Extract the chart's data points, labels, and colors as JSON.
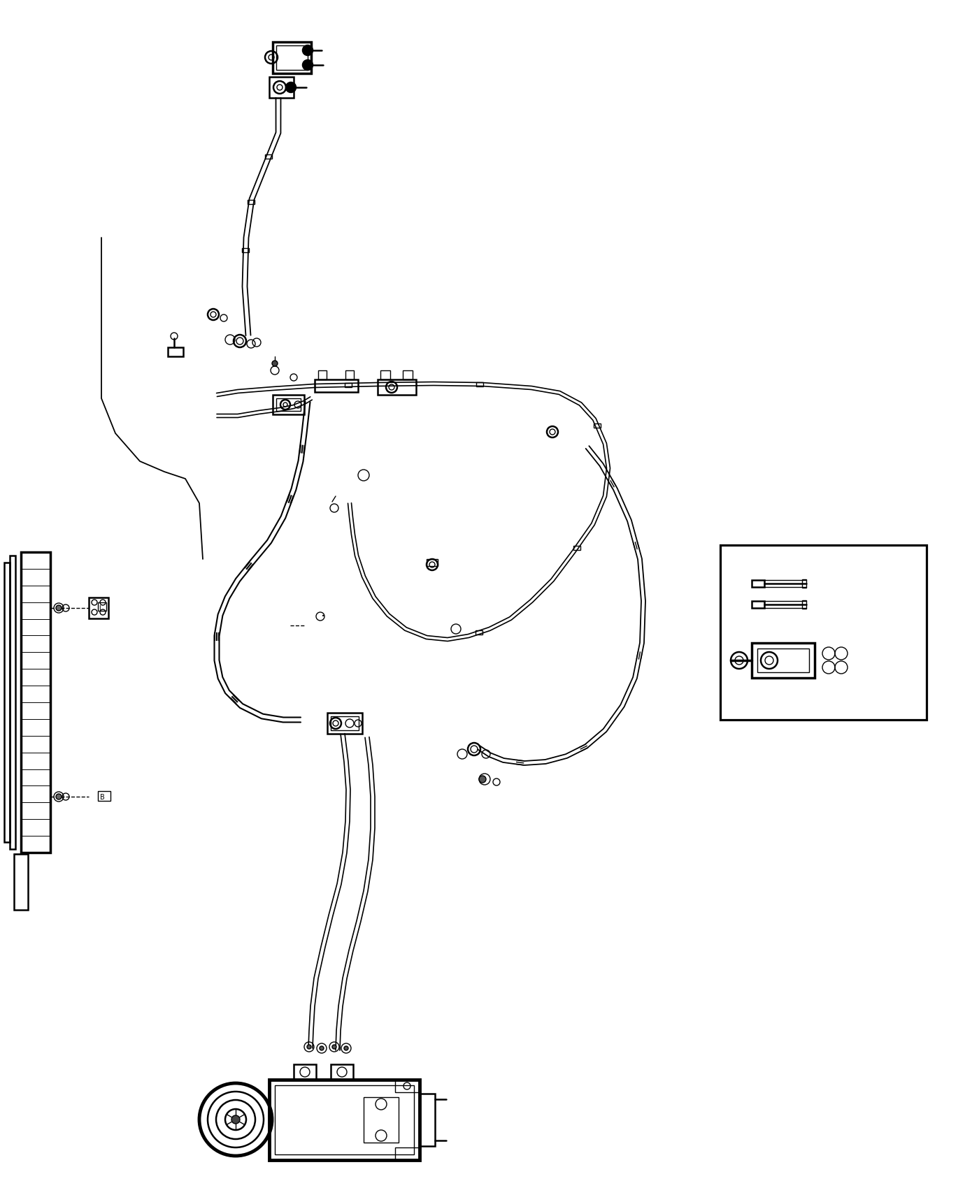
{
  "background_color": "#ffffff",
  "line_color": "#000000",
  "fig_width": 14.0,
  "fig_height": 17.0,
  "dpi": 100,
  "lw_thick": 2.5,
  "lw_med": 1.8,
  "lw_thin": 1.0,
  "lw_vthick": 3.5
}
